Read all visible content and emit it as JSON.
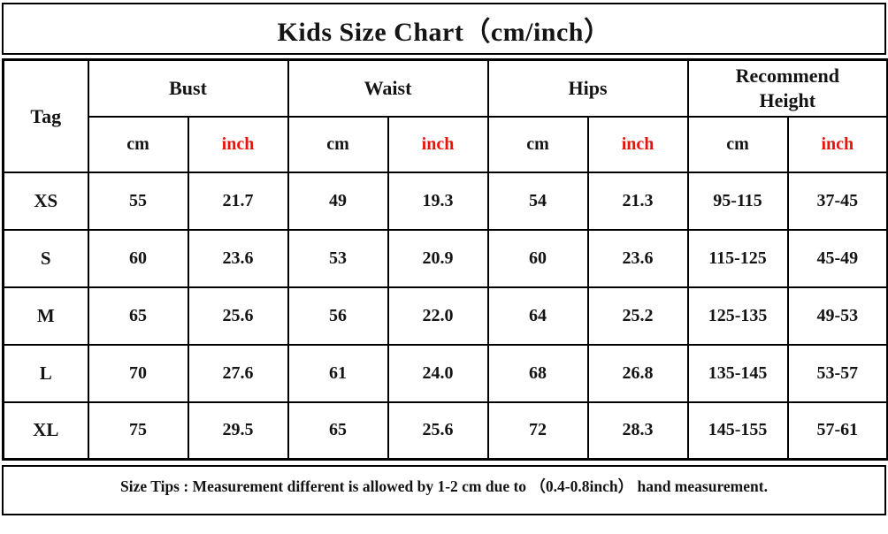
{
  "title": "Kids Size Chart（cm/inch）",
  "header": {
    "tag": "Tag",
    "groups": [
      "Bust",
      "Waist",
      "Hips",
      "Recommend Height"
    ],
    "unit_cm": "cm",
    "unit_inch": "inch"
  },
  "chart_data": {
    "type": "table",
    "title": "Kids Size Chart（cm/inch）",
    "columns": [
      "Tag",
      "Bust cm",
      "Bust inch",
      "Waist cm",
      "Waist inch",
      "Hips cm",
      "Hips inch",
      "Recommend Height cm",
      "Recommend Height inch"
    ],
    "rows": [
      [
        "XS",
        "55",
        "21.7",
        "49",
        "19.3",
        "54",
        "21.3",
        "95-115",
        "37-45"
      ],
      [
        "S",
        "60",
        "23.6",
        "53",
        "20.9",
        "60",
        "23.6",
        "115-125",
        "45-49"
      ],
      [
        "M",
        "65",
        "25.6",
        "56",
        "22.0",
        "64",
        "25.2",
        "125-135",
        "49-53"
      ],
      [
        "L",
        "70",
        "27.6",
        "61",
        "24.0",
        "68",
        "26.8",
        "135-145",
        "53-57"
      ],
      [
        "XL",
        "75",
        "29.5",
        "65",
        "25.6",
        "72",
        "28.3",
        "145-155",
        "57-61"
      ]
    ],
    "footnote": "Size Tips : Measurement different is allowed by 1-2 cm due to （0.4-0.8inch） hand measurement."
  },
  "tips": "Size Tips : Measurement different is allowed by 1-2 cm due to （0.4-0.8inch） hand measurement.",
  "colors": {
    "inch_red": "#e8140c",
    "border_black": "#000000",
    "text_black": "#141414",
    "background": "#ffffff"
  }
}
